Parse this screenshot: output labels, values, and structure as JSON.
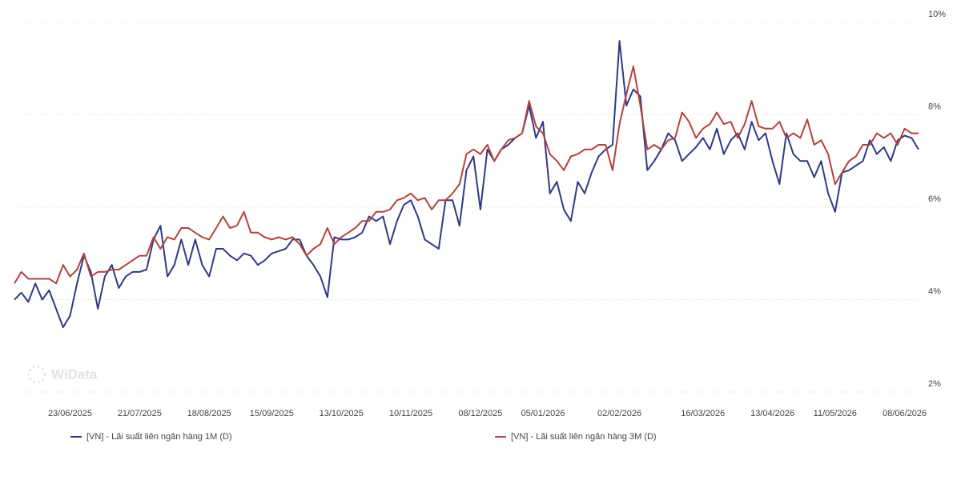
{
  "chart_data": {
    "type": "line",
    "watermark": "WiData",
    "categories": [
      null,
      null,
      null,
      null,
      null,
      null,
      null,
      null,
      "23/06/2025",
      null,
      null,
      null,
      null,
      null,
      null,
      null,
      null,
      null,
      "21/07/2025",
      null,
      null,
      null,
      null,
      null,
      null,
      null,
      null,
      null,
      "18/08/2025",
      null,
      null,
      null,
      null,
      null,
      null,
      null,
      null,
      "15/09/2025",
      null,
      null,
      null,
      null,
      null,
      null,
      null,
      null,
      null,
      "13/10/2025",
      null,
      null,
      null,
      null,
      null,
      null,
      null,
      null,
      null,
      "10/11/2025",
      null,
      null,
      null,
      null,
      null,
      null,
      null,
      null,
      null,
      "08/12/2025",
      null,
      null,
      null,
      null,
      null,
      null,
      null,
      null,
      "05/01/2026",
      null,
      null,
      null,
      null,
      null,
      null,
      null,
      null,
      null,
      null,
      "02/02/2026",
      null,
      null,
      null,
      null,
      null,
      null,
      null,
      null,
      null,
      null,
      null,
      "16/03/2026",
      null,
      null,
      null,
      null,
      null,
      null,
      null,
      null,
      null,
      "13/04/2026",
      null,
      null,
      null,
      null,
      null,
      null,
      null,
      null,
      "11/05/2026",
      null,
      null,
      null,
      null,
      null,
      null,
      null,
      null,
      null,
      "08/06/2026",
      null,
      null
    ],
    "series": [
      {
        "name": "[VN] - Lãi suất liên ngân hàng 1M (D)",
        "color": "#2e3a87",
        "values": [
          4.0,
          4.15,
          3.95,
          4.35,
          4.0,
          4.2,
          3.8,
          3.4,
          3.65,
          4.35,
          4.95,
          4.6,
          3.8,
          4.5,
          4.75,
          4.25,
          4.5,
          4.6,
          4.6,
          4.65,
          5.3,
          5.6,
          4.5,
          4.75,
          5.3,
          4.75,
          5.3,
          4.75,
          4.5,
          5.1,
          5.1,
          4.95,
          4.85,
          5.0,
          4.95,
          4.75,
          4.85,
          5.0,
          5.05,
          5.1,
          5.3,
          5.3,
          4.95,
          4.75,
          4.5,
          4.05,
          5.35,
          5.3,
          5.3,
          5.35,
          5.45,
          5.8,
          5.7,
          5.8,
          5.2,
          5.7,
          6.05,
          6.15,
          5.8,
          5.3,
          5.2,
          5.1,
          6.15,
          6.15,
          5.6,
          6.8,
          7.1,
          5.95,
          7.25,
          7.0,
          7.25,
          7.35,
          7.5,
          7.6,
          8.2,
          7.5,
          7.85,
          6.3,
          6.55,
          5.95,
          5.7,
          6.55,
          6.3,
          6.75,
          7.1,
          7.25,
          7.35,
          9.6,
          8.2,
          8.55,
          8.4,
          6.8,
          7.0,
          7.25,
          7.6,
          7.45,
          7.0,
          7.15,
          7.3,
          7.5,
          7.25,
          7.7,
          7.15,
          7.45,
          7.6,
          7.25,
          7.85,
          7.45,
          7.6,
          7.0,
          6.5,
          7.6,
          7.15,
          7.0,
          7.0,
          6.65,
          7.0,
          6.3,
          5.9,
          6.75,
          6.8,
          6.9,
          7.0,
          7.45,
          7.15,
          7.3,
          7.0,
          7.45,
          7.55,
          7.5,
          7.25
        ]
      },
      {
        "name": "[VN] - Lãi suất liên ngân hàng 3M (D)",
        "color": "#b5413d",
        "values": [
          4.35,
          4.6,
          4.45,
          4.45,
          4.45,
          4.45,
          4.35,
          4.75,
          4.5,
          4.65,
          5.0,
          4.5,
          4.6,
          4.6,
          4.65,
          4.65,
          4.75,
          4.85,
          4.95,
          4.95,
          5.35,
          5.1,
          5.35,
          5.3,
          5.55,
          5.55,
          5.45,
          5.35,
          5.3,
          5.55,
          5.8,
          5.55,
          5.6,
          5.9,
          5.45,
          5.45,
          5.35,
          5.3,
          5.35,
          5.3,
          5.35,
          5.2,
          4.95,
          5.1,
          5.2,
          5.55,
          5.2,
          5.35,
          5.45,
          5.55,
          5.7,
          5.7,
          5.9,
          5.9,
          5.95,
          6.15,
          6.2,
          6.3,
          6.15,
          6.2,
          5.95,
          6.15,
          6.15,
          6.3,
          6.5,
          7.15,
          7.25,
          7.15,
          7.35,
          7.0,
          7.25,
          7.45,
          7.5,
          7.6,
          8.3,
          7.75,
          7.6,
          7.15,
          7.0,
          6.8,
          7.1,
          7.15,
          7.25,
          7.25,
          7.35,
          7.35,
          6.8,
          7.8,
          8.45,
          9.05,
          8.2,
          7.25,
          7.35,
          7.25,
          7.45,
          7.5,
          8.05,
          7.85,
          7.5,
          7.7,
          7.8,
          8.05,
          7.8,
          7.85,
          7.5,
          7.8,
          8.3,
          7.75,
          7.7,
          7.7,
          7.85,
          7.5,
          7.6,
          7.5,
          7.9,
          7.35,
          7.45,
          7.15,
          6.5,
          6.75,
          7.0,
          7.1,
          7.35,
          7.35,
          7.6,
          7.5,
          7.6,
          7.35,
          7.7,
          7.6,
          7.6
        ]
      }
    ],
    "ylim": [
      2,
      10
    ],
    "yticks": [
      {
        "value": 2,
        "label": "2%"
      },
      {
        "value": 4,
        "label": "4%"
      },
      {
        "value": 6,
        "label": "6%"
      },
      {
        "value": 8,
        "label": "8%"
      },
      {
        "value": 10,
        "label": "10%"
      }
    ],
    "grid": true,
    "legend": "bottom"
  }
}
